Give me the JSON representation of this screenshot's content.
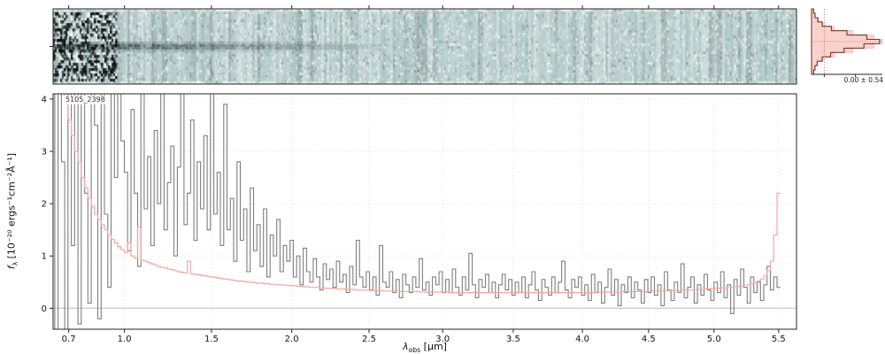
{
  "chart_data": {
    "type": "line",
    "title": "5105_2398",
    "xlabel_parts": {
      "sym": "λ",
      "sub": "obs",
      "rest": " [μm]"
    },
    "ylabel_parts": {
      "sym": "f",
      "sub": "λ",
      "rest": " [10⁻²⁰ ergs⁻¹cm⁻²Å⁻¹]"
    },
    "ylim": [
      -0.4,
      4.1
    ],
    "yticks": [
      0,
      1,
      2,
      3,
      4
    ],
    "grid": "dotted",
    "xticks": {
      "labels": [
        "0.7",
        "1.0",
        "1.5",
        "2.0",
        "2.5",
        "3.0",
        "3.5",
        "4.0",
        "4.5",
        "5.0",
        "5.5"
      ],
      "fractions": [
        0.021,
        0.096,
        0.213,
        0.321,
        0.425,
        0.524,
        0.619,
        0.712,
        0.801,
        0.889,
        0.976
      ]
    },
    "series": [
      {
        "name": "flux",
        "color": "#7f7f7f",
        "style": "steps",
        "x_frac_start": 0,
        "x_frac_end": 0.976,
        "values": [
          5.2,
          -0.4,
          6,
          2.8,
          -0.5,
          5.5,
          1.2,
          6.2,
          -0.3,
          4.8,
          2.2,
          0.1,
          5.8,
          3.5,
          -0.2,
          6.5,
          1.8,
          0.4,
          5,
          2.5,
          6.8,
          3.2,
          2.6,
          1.1,
          3.8,
          2.2,
          0.8,
          4.4,
          1.9,
          2.9,
          1.2,
          3.4,
          2,
          4.6,
          1.5,
          2.4,
          3.1,
          1,
          2.7,
          4.2,
          1.6,
          2.2,
          3.6,
          1.3,
          2.8,
          1.9,
          3.3,
          1.5,
          4.1,
          1.8,
          2.6,
          1.2,
          3.9,
          1.5,
          2.1,
          0.9,
          2.8,
          1.3,
          1.9,
          0.7,
          2.3,
          1.1,
          1.6,
          0.8,
          1.9,
          0.6,
          1.4,
          1,
          1.7,
          0.7,
          1.2,
          0.9,
          1.3,
          0.6,
          1,
          0.45,
          1.15,
          0.7,
          0.5,
          0.95,
          0.6,
          0.35,
          0.85,
          0.55,
          0.75,
          0.4,
          0.9,
          0.5,
          0.65,
          0.3,
          0.8,
          0.45,
          1.3,
          0.6,
          0.4,
          0.7,
          0.35,
          0.6,
          0.25,
          1.2,
          0.5,
          0.4,
          0.7,
          0.3,
          0.55,
          0.2,
          0.65,
          0.45,
          0.3,
          0.6,
          0.4,
          0.95,
          0.35,
          0.5,
          0.25,
          0.6,
          0.45,
          0.7,
          0.3,
          0.55,
          0.3,
          0.75,
          0.4,
          0.25,
          0.6,
          0.35,
          1.05,
          0.45,
          0.2,
          0.55,
          0.4,
          0.65,
          0.3,
          0.5,
          0.2,
          0.45,
          0.65,
          0.35,
          0.55,
          0.25,
          0.5,
          0.3,
          0.6,
          0.2,
          0.45,
          0.7,
          0.35,
          0.15,
          0.55,
          0.4,
          0.25,
          0.6,
          0.3,
          0.5,
          0.9,
          0.35,
          0.2,
          0.55,
          0.4,
          0.6,
          0.25,
          0.45,
          0.15,
          0.65,
          0.3,
          0.5,
          0.1,
          0.4,
          0.75,
          0.25,
          0.55,
          0.05,
          0.45,
          0.3,
          0.6,
          0.2,
          0.5,
          0.35,
          0.1,
          0.55,
          0.3,
          0.6,
          0.25,
          0.45,
          0.05,
          0.7,
          0.35,
          0.15,
          0.5,
          0.3,
          0.85,
          0.2,
          0.4,
          0.6,
          0.1,
          0.45,
          0.25,
          0.65,
          0.35,
          0.15,
          0.5,
          0.3,
          0.7,
          0.2,
          0.45,
          -0.1,
          0.55,
          0.25,
          0.75,
          0.4,
          0.1,
          0.6,
          0.3,
          0.5,
          0.15,
          0.45,
          0.8,
          0.35,
          0.6,
          0.4
        ]
      },
      {
        "name": "uncertainty",
        "color": "#f4a7a2",
        "style": "steps",
        "x_frac_start": 0,
        "x_frac_end": 0.976,
        "values": [
          6,
          5.5,
          5,
          4.5,
          4,
          3.6,
          3.3,
          3,
          2.8,
          2.5,
          2.3,
          2.1,
          1.95,
          1.8,
          1.7,
          1.6,
          1.5,
          1.4,
          1.32,
          1.25,
          1.18,
          1.12,
          1.07,
          1.25,
          1,
          0.96,
          1.55,
          0.92,
          0.9,
          0.87,
          0.85,
          0.83,
          0.8,
          0.78,
          0.77,
          0.75,
          0.74,
          0.72,
          0.7,
          0.69,
          0.68,
          0.9,
          0.66,
          0.65,
          0.64,
          0.63,
          0.62,
          0.61,
          0.6,
          0.59,
          0.58,
          0.57,
          0.56,
          0.55,
          0.54,
          0.53,
          0.52,
          0.52,
          0.51,
          0.5,
          0.5,
          0.49,
          0.48,
          0.48,
          0.47,
          0.47,
          0.46,
          0.46,
          0.45,
          0.45,
          0.44,
          0.44,
          0.43,
          0.43,
          0.42,
          0.42,
          0.41,
          0.41,
          0.4,
          0.4,
          0.4,
          0.39,
          0.39,
          0.38,
          0.38,
          0.38,
          0.37,
          0.37,
          0.37,
          0.36,
          0.36,
          0.36,
          0.35,
          0.35,
          0.35,
          0.35,
          0.34,
          0.34,
          0.34,
          0.34,
          0.33,
          0.33,
          0.33,
          0.33,
          0.33,
          0.32,
          0.32,
          0.32,
          0.32,
          0.32,
          0.32,
          0.31,
          0.31,
          0.31,
          0.31,
          0.31,
          0.31,
          0.31,
          0.31,
          0.31,
          0.3,
          0.3,
          0.3,
          0.3,
          0.3,
          0.3,
          0.3,
          0.3,
          0.3,
          0.3,
          0.3,
          0.3,
          0.3,
          0.3,
          0.3,
          0.3,
          0.3,
          0.3,
          0.3,
          0.3,
          0.3,
          0.3,
          0.3,
          0.3,
          0.3,
          0.3,
          0.3,
          0.3,
          0.3,
          0.3,
          0.3,
          0.3,
          0.3,
          0.3,
          0.3,
          0.3,
          0.3,
          0.3,
          0.3,
          0.3,
          0.3,
          0.3,
          0.3,
          0.3,
          0.31,
          0.31,
          0.31,
          0.31,
          0.31,
          0.31,
          0.31,
          0.31,
          0.32,
          0.32,
          0.32,
          0.32,
          0.32,
          0.32,
          0.32,
          0.32,
          0.32,
          0.33,
          0.33,
          0.33,
          0.33,
          0.33,
          0.34,
          0.34,
          0.34,
          0.34,
          0.35,
          0.35,
          0.35,
          0.35,
          0.36,
          0.36,
          0.36,
          0.37,
          0.37,
          0.38,
          0.38,
          0.38,
          0.39,
          0.39,
          0.4,
          0.4,
          0.41,
          0.42,
          0.43,
          0.44,
          0.45,
          0.47,
          0.49,
          0.52,
          0.56,
          0.62,
          0.72,
          0.9,
          1.4,
          2.2
        ]
      }
    ],
    "panels": {
      "spec2d": {
        "bg_color": "#b7cdcc",
        "dark_color": "#0c1514",
        "trace_center_frac": 0.5,
        "trace_extent_frac": 0.5,
        "left_noise_frac": 0.085,
        "seed": 7
      },
      "profile": {
        "label": "0.00 ± 0.54",
        "step_color": "#7a372b",
        "fill_color": "#f6b4ab",
        "guide_color": "#e05252",
        "step_counts": [
          0.03,
          0.05,
          0.09,
          0.15,
          0.28,
          0.5,
          0.78,
          0.96,
          0.74,
          0.46,
          0.27,
          0.15,
          0.08,
          0.05,
          0.03
        ],
        "fill_counts": [
          0.02,
          0.04,
          0.08,
          0.16,
          0.32,
          0.58,
          0.88,
          1,
          0.88,
          0.58,
          0.32,
          0.16,
          0.08,
          0.04,
          0.02
        ]
      }
    },
    "style": {
      "grid_color": "#d9d9d9",
      "zero_line_color": "#cccccc",
      "spine_color": "#262626",
      "tick_label_color": "#111111"
    }
  }
}
